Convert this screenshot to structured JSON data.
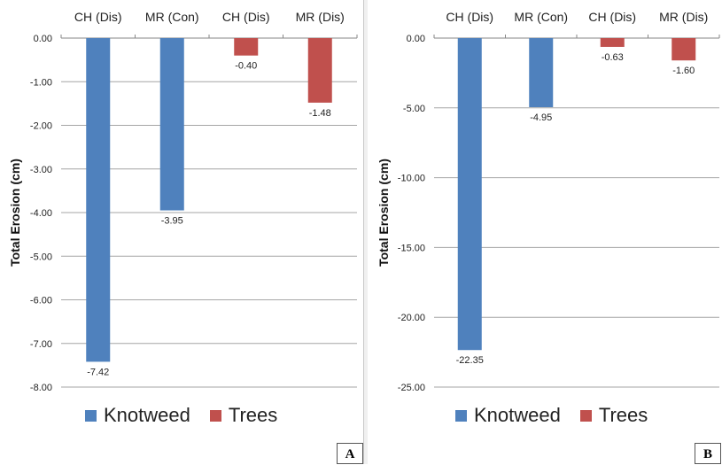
{
  "chart_data": [
    {
      "panel_label": "A",
      "type": "bar",
      "categories": [
        "CH (Dis)",
        "MR (Con)",
        "CH (Dis)",
        "MR (Dis)"
      ],
      "series": [
        {
          "name": "Knotweed",
          "color": "#4f81bd",
          "values": [
            -7.42,
            -3.95,
            null,
            null
          ]
        },
        {
          "name": "Trees",
          "color": "#c0504d",
          "values": [
            null,
            null,
            -0.4,
            -1.48
          ]
        }
      ],
      "data_labels": [
        "-7.42",
        "-3.95",
        "-0.40",
        "-1.48"
      ],
      "ylabel": "Total Erosion (cm)",
      "ylim": [
        -8,
        0
      ],
      "yticks": [
        0,
        -1,
        -2,
        -3,
        -4,
        -5,
        -6,
        -7,
        -8
      ],
      "ytick_labels": [
        "0.00",
        "-1.00",
        "-2.00",
        "-3.00",
        "-4.00",
        "-5.00",
        "-6.00",
        "-7.00",
        "-8.00"
      ],
      "grid": true,
      "x_axis_position": "top",
      "legend_position": "bottom"
    },
    {
      "panel_label": "B",
      "type": "bar",
      "categories": [
        "CH (Dis)",
        "MR (Con)",
        "CH (Dis)",
        "MR (Dis)"
      ],
      "series": [
        {
          "name": "Knotweed",
          "color": "#4f81bd",
          "values": [
            -22.35,
            -4.95,
            null,
            null
          ]
        },
        {
          "name": "Trees",
          "color": "#c0504d",
          "values": [
            null,
            null,
            -0.63,
            -1.6
          ]
        }
      ],
      "data_labels": [
        "-22.35",
        "-4.95",
        "-0.63",
        "-1.60"
      ],
      "ylabel": "Total Erosion (cm)",
      "ylim": [
        -25,
        0
      ],
      "yticks": [
        0,
        -5,
        -10,
        -15,
        -20,
        -25
      ],
      "ytick_labels": [
        "0.00",
        "-5.00",
        "-10.00",
        "-15.00",
        "-20.00",
        "-25.00"
      ],
      "grid": true,
      "x_axis_position": "top",
      "legend_position": "bottom"
    }
  ]
}
